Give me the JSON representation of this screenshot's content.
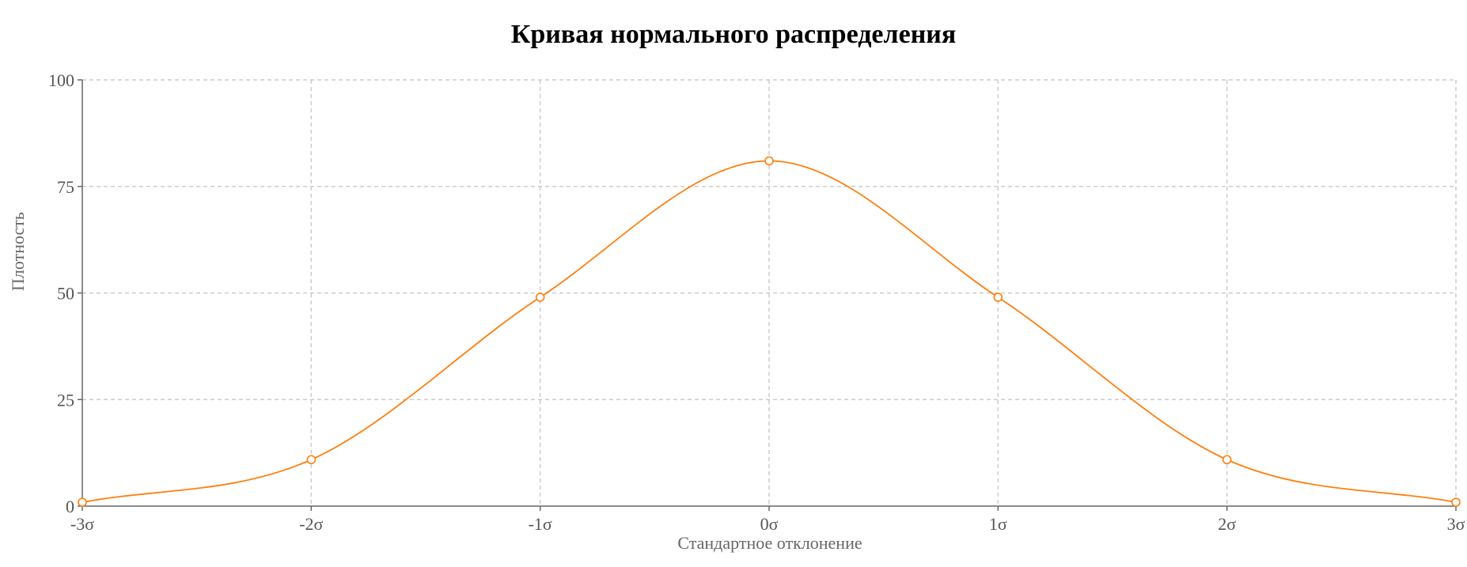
{
  "chart_data": {
    "type": "line",
    "title": "Кривая нормального распределения",
    "xlabel": "Стандартное отклонение",
    "ylabel": "Плотность",
    "categories": [
      "-3σ",
      "-2σ",
      "-1σ",
      "0σ",
      "1σ",
      "2σ",
      "3σ"
    ],
    "x": [
      -3,
      -2,
      -1,
      0,
      1,
      2,
      3
    ],
    "series": [
      {
        "values": [
          0.9,
          10.9,
          49,
          81,
          49,
          10.9,
          0.9
        ]
      }
    ],
    "ylim": [
      0,
      100
    ],
    "yticks": [
      0,
      25,
      50,
      75,
      100
    ],
    "grid": true,
    "legend": "none",
    "line_color": "#ff7f0e",
    "marker": "open-circle"
  }
}
